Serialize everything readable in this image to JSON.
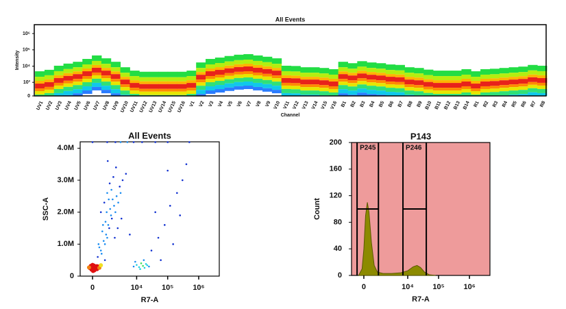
{
  "chart_data": [
    {
      "type": "spectrum",
      "title": "All Events",
      "x_label": "Channel",
      "y_label": "Intensity",
      "yscale": "biexponential",
      "categories": [
        "UV1",
        "UV2",
        "UV3",
        "UV4",
        "UV5",
        "UV6",
        "UV7",
        "UV8",
        "UV9",
        "UV10",
        "UV11",
        "UV12",
        "UV13",
        "UV14",
        "UV15",
        "UV16",
        "V1",
        "V2",
        "V3",
        "V4",
        "V5",
        "V6",
        "V7",
        "V8",
        "V9",
        "V10",
        "V11",
        "V12",
        "V13",
        "V14",
        "V15",
        "V16",
        "B1",
        "B2",
        "B3",
        "B4",
        "B5",
        "B6",
        "B7",
        "B8",
        "B9",
        "B10",
        "B11",
        "B12",
        "B13",
        "B14",
        "R1",
        "R2",
        "R3",
        "R4",
        "R5",
        "R6",
        "R7",
        "R8"
      ],
      "values": [
        540,
        680,
        1250,
        1700,
        2200,
        3300,
        5400,
        3600,
        2200,
        1000,
        600,
        500,
        500,
        500,
        500,
        500,
        600,
        2000,
        3300,
        4000,
        5000,
        6000,
        6500,
        5400,
        4500,
        3600,
        1250,
        1200,
        1000,
        1000,
        900,
        750,
        2200,
        1800,
        2400,
        2000,
        1800,
        1500,
        1400,
        1000,
        900,
        700,
        600,
        600,
        600,
        750,
        540,
        750,
        800,
        900,
        1000,
        1100,
        1400,
        1250
      ],
      "ylim": [
        0,
        3500000
      ],
      "yticks": [
        0,
        {
          "value": 1000,
          "label": "10³"
        },
        {
          "value": 10000,
          "label": "10⁴"
        },
        {
          "value": 100000,
          "label": "10⁵"
        },
        {
          "value": 1000000,
          "label": "10⁶"
        }
      ]
    },
    {
      "type": "scatter",
      "title": "All Events",
      "x_label": "R7-A",
      "y_label": "SSC-A",
      "xscale": "biexponential",
      "color": "#1030d0",
      "x": [
        -150,
        -80,
        0,
        50,
        120,
        200,
        250,
        300,
        -50,
        80,
        150,
        220,
        0,
        100,
        180,
        -100,
        60,
        260,
        350,
        140,
        30,
        400,
        500,
        -200,
        90,
        300,
        500,
        800,
        1000,
        1200,
        1500,
        2000,
        2500,
        3000,
        400,
        700,
        900,
        1100,
        1400,
        1800,
        2200,
        600,
        850,
        1300,
        1600,
        2800,
        3500,
        4500,
        500,
        750,
        1000,
        1250,
        1700,
        2100,
        350,
        650,
        950,
        1150,
        1450,
        1900,
        2400,
        3200,
        550,
        800,
        1050,
        0,
        1000,
        2000,
        3000,
        5000,
        8000,
        15000,
        40000,
        100000,
        500000,
        8000,
        10000,
        12000,
        14000,
        16000,
        18000,
        20000,
        25000,
        9000,
        13000,
        17000,
        22000,
        30000,
        50000,
        80000,
        120000,
        200000,
        300000,
        400000,
        60000,
        150000,
        250000,
        40000,
        100000,
        6000
      ],
      "y": [
        250000,
        280000,
        220000,
        300000,
        260000,
        240000,
        310000,
        270000,
        200000,
        330000,
        230000,
        290000,
        350000,
        180000,
        260000,
        320000,
        250000,
        220000,
        300000,
        280000,
        160000,
        260000,
        340000,
        270000,
        240000,
        600000,
        800000,
        1000000,
        1200000,
        1500000,
        1800000,
        2000000,
        2300000,
        2600000,
        900000,
        1100000,
        1300000,
        1600000,
        1900000,
        2200000,
        2500000,
        1400000,
        1700000,
        2100000,
        2400000,
        2800000,
        3000000,
        3200000,
        2000000,
        2300000,
        2600000,
        2900000,
        3100000,
        3400000,
        1000000,
        1600000,
        2000000,
        2400000,
        2700000,
        1200000,
        1500000,
        1800000,
        700000,
        500000,
        3600000,
        4190000,
        4190000,
        4190000,
        4190000,
        4190000,
        4190000,
        4190000,
        4190000,
        4190000,
        4190000,
        300000,
        350000,
        280000,
        400000,
        320000,
        260000,
        380000,
        300000,
        450000,
        220000,
        500000,
        340000,
        800000,
        1200000,
        1600000,
        2200000,
        2600000,
        3000000,
        3500000,
        500000,
        1000000,
        1900000,
        2000000,
        3300000,
        1300000
      ],
      "xlim": [
        -800,
        4600000
      ],
      "xticks": [
        0,
        {
          "value": 10000,
          "label": "10⁴"
        },
        {
          "value": 100000,
          "label": "10⁵"
        },
        {
          "value": 1000000,
          "label": "10⁶"
        }
      ],
      "ylim": [
        0,
        4200000
      ],
      "yticks": [
        0,
        {
          "value": 1000000,
          "label": "1.0M"
        },
        {
          "value": 2000000,
          "label": "2.0M"
        },
        {
          "value": 3000000,
          "label": "3.0M"
        },
        {
          "value": 4000000,
          "label": "4.0M"
        }
      ]
    },
    {
      "type": "area",
      "title": "P143",
      "x_label": "R7-A",
      "y_label": "Count",
      "xscale": "biexponential",
      "color": "#8c8a00",
      "x": [
        -300,
        -100,
        0,
        100,
        200,
        300,
        450,
        650,
        900,
        1500,
        3000,
        6000,
        10000,
        15000,
        20000,
        26000,
        35000,
        50000,
        80000
      ],
      "values": [
        0,
        10,
        40,
        90,
        110,
        95,
        50,
        15,
        5,
        3,
        3,
        4,
        7,
        13,
        15,
        12,
        5,
        1,
        0
      ],
      "xlim": [
        -800,
        4600000
      ],
      "xticks": [
        0,
        {
          "value": 10000,
          "label": "10⁴"
        },
        {
          "value": 100000,
          "label": "10⁵"
        },
        {
          "value": 1000000,
          "label": "10⁶"
        }
      ],
      "ylim": [
        0,
        200
      ],
      "yticks": [
        0,
        40,
        80,
        120,
        160,
        200
      ],
      "gates": [
        {
          "name": "P245",
          "x": [
            -400,
            1000
          ],
          "y": 100
        },
        {
          "name": "P246",
          "x": [
            7000,
            40000
          ],
          "y": 100
        }
      ]
    }
  ]
}
